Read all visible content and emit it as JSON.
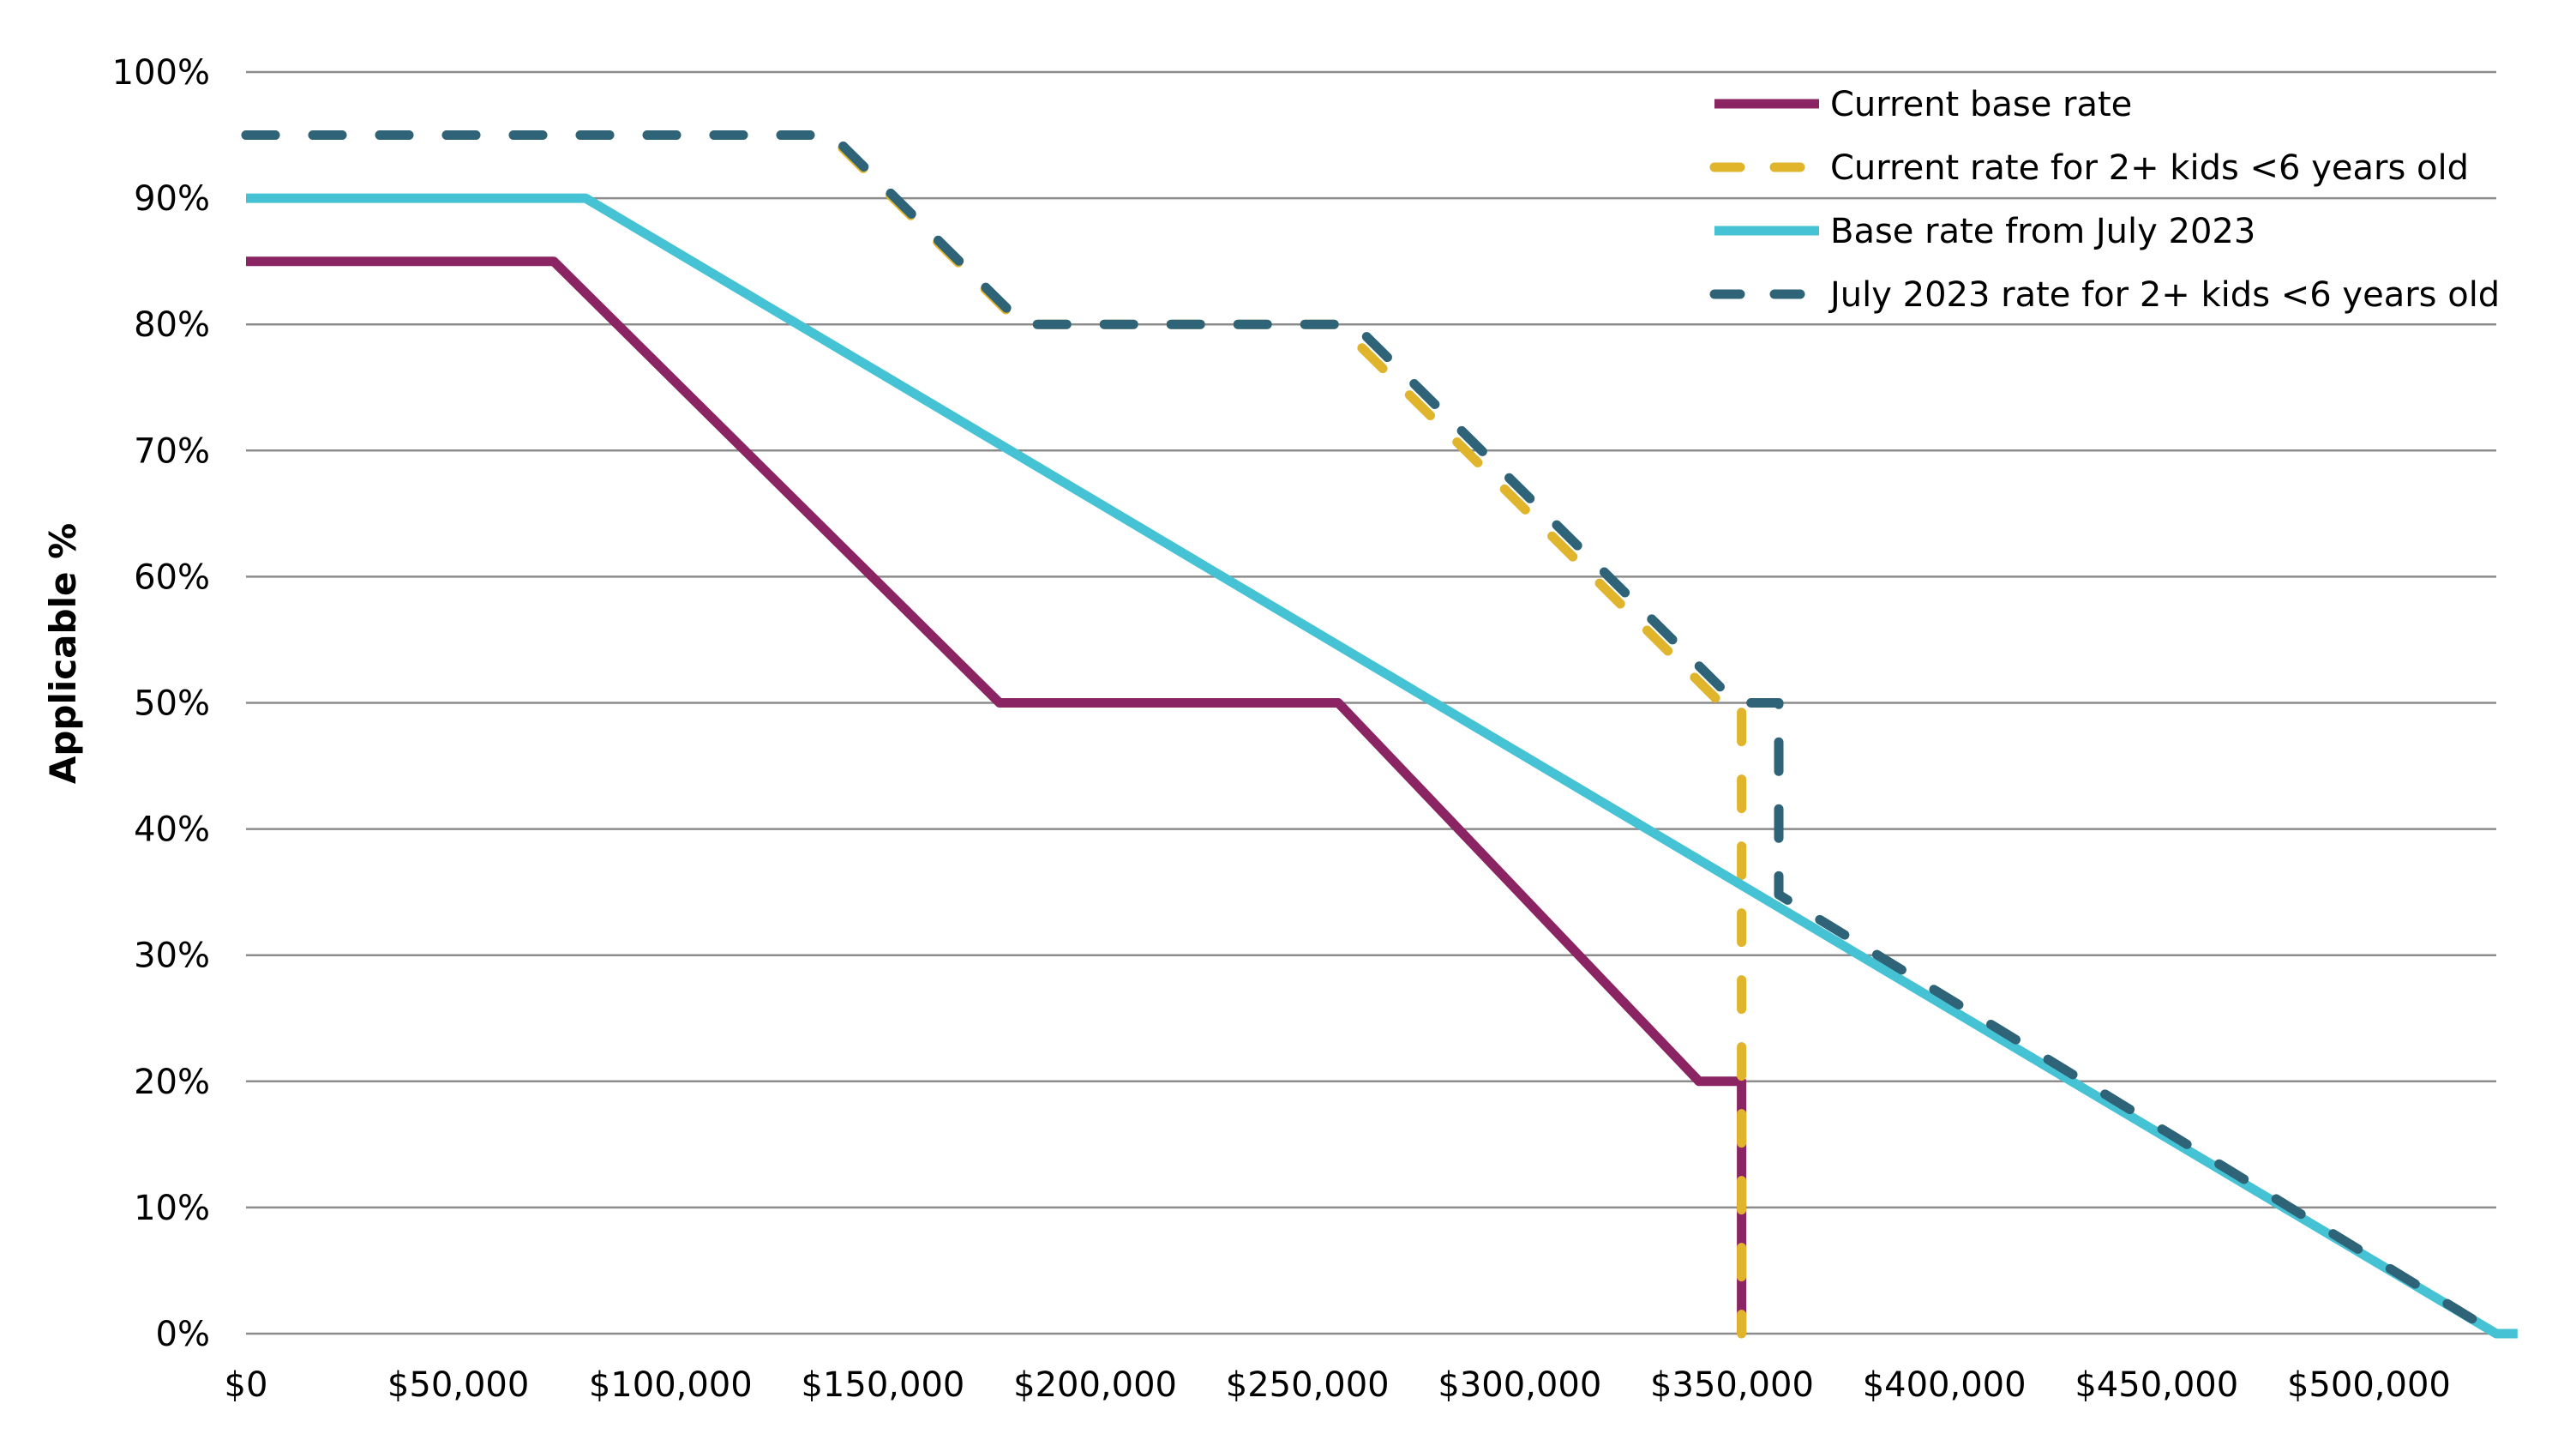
{
  "chart_data": {
    "type": "line",
    "title": "",
    "xlabel": "",
    "ylabel": "Applicable %",
    "xlim": [
      0,
      530000
    ],
    "ylim": [
      0,
      100
    ],
    "x_ticks": [
      {
        "value": 0,
        "label": "$0"
      },
      {
        "value": 50000,
        "label": "$50,000"
      },
      {
        "value": 100000,
        "label": "$100,000"
      },
      {
        "value": 150000,
        "label": "$150,000"
      },
      {
        "value": 200000,
        "label": "$200,000"
      },
      {
        "value": 250000,
        "label": "$250,000"
      },
      {
        "value": 300000,
        "label": "$300,000"
      },
      {
        "value": 350000,
        "label": "$350,000"
      },
      {
        "value": 400000,
        "label": "$400,000"
      },
      {
        "value": 450000,
        "label": "$450,000"
      },
      {
        "value": 500000,
        "label": "$500,000"
      }
    ],
    "y_ticks": [
      {
        "value": 0,
        "label": "0%"
      },
      {
        "value": 10,
        "label": "10%"
      },
      {
        "value": 20,
        "label": "20%"
      },
      {
        "value": 30,
        "label": "30%"
      },
      {
        "value": 40,
        "label": "40%"
      },
      {
        "value": 50,
        "label": "50%"
      },
      {
        "value": 60,
        "label": "60%"
      },
      {
        "value": 70,
        "label": "70%"
      },
      {
        "value": 80,
        "label": "80%"
      },
      {
        "value": 90,
        "label": "90%"
      },
      {
        "value": 100,
        "label": "100%"
      }
    ],
    "grid": true,
    "legend_position": "top-right",
    "series": [
      {
        "name": "Current base rate",
        "color": "#8b2462",
        "dash": "solid",
        "points": [
          [
            0,
            85
          ],
          [
            72466,
            85
          ],
          [
            177466,
            50
          ],
          [
            257238,
            50
          ],
          [
            342238,
            20
          ],
          [
            352238,
            20
          ],
          [
            352238,
            0
          ]
        ]
      },
      {
        "name": "Current rate for 2+ kids <6 years old",
        "color": "#e0b52c",
        "dash": "dashed",
        "points": [
          [
            0,
            95
          ],
          [
            137456,
            95
          ],
          [
            182456,
            80
          ],
          [
            257238,
            80
          ],
          [
            347238,
            50
          ],
          [
            352238,
            50
          ],
          [
            352238,
            0
          ]
        ]
      },
      {
        "name": "Base rate from July 2023",
        "color": "#45c3d4",
        "dash": "solid",
        "points": [
          [
            0,
            90
          ],
          [
            80000,
            90
          ],
          [
            530000,
            0
          ],
          [
            535000,
            0
          ]
        ]
      },
      {
        "name": "July 2023 rate for 2+ kids <6 years old",
        "color": "#2e6378",
        "dash": "dashed",
        "points": [
          [
            0,
            95
          ],
          [
            138000,
            95
          ],
          [
            183000,
            80
          ],
          [
            261000,
            80
          ],
          [
            351000,
            50
          ],
          [
            361000,
            50
          ],
          [
            361000,
            34.8
          ],
          [
            530000,
            0
          ]
        ]
      }
    ]
  }
}
